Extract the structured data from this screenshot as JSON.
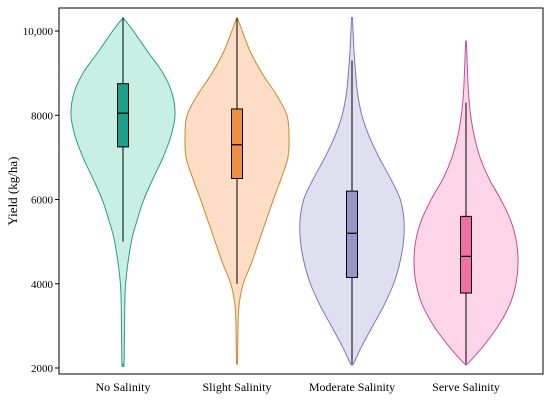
{
  "chart_data": {
    "type": "violin",
    "ylabel": "Yield (kg/ha)",
    "ylim": [
      2000,
      10500
    ],
    "yticks": [
      2000,
      4000,
      6000,
      8000,
      10000
    ],
    "ytick_labels": [
      "2000",
      "4000",
      "6000",
      "8000",
      "10,000"
    ],
    "grid": false,
    "categories": [
      "No Salinity",
      "Slight Salinity",
      "Moderate Salinity",
      "Serve Salinity"
    ],
    "series": [
      {
        "category": "No Salinity",
        "fill": "#c2ede0",
        "stroke": "#2a9d80",
        "box_color": "#1f9e89",
        "range": [
          2100,
          10300
        ],
        "box": {
          "whisker_low": 5000,
          "q1": 7250,
          "median": 8050,
          "q3": 8750,
          "whisker_high": 10300
        },
        "density": [
          [
            2100,
            0.02
          ],
          [
            3000,
            0.03
          ],
          [
            4000,
            0.05
          ],
          [
            5000,
            0.16
          ],
          [
            5500,
            0.27
          ],
          [
            6000,
            0.4
          ],
          [
            6500,
            0.58
          ],
          [
            7000,
            0.77
          ],
          [
            7500,
            0.92
          ],
          [
            8000,
            1.0
          ],
          [
            8500,
            0.95
          ],
          [
            9000,
            0.77
          ],
          [
            9500,
            0.48
          ],
          [
            10000,
            0.2
          ],
          [
            10300,
            0.01
          ]
        ]
      },
      {
        "category": "Slight Salinity",
        "fill": "#fdd9bf",
        "stroke": "#c88a2c",
        "box_color": "#ee8f43",
        "range": [
          2150,
          10300
        ],
        "box": {
          "whisker_low": 4000,
          "q1": 6500,
          "median": 7300,
          "q3": 8150,
          "whisker_high": 10300
        },
        "density": [
          [
            2150,
            0.01
          ],
          [
            3000,
            0.02
          ],
          [
            3500,
            0.04
          ],
          [
            4000,
            0.12
          ],
          [
            4500,
            0.28
          ],
          [
            5000,
            0.42
          ],
          [
            5500,
            0.56
          ],
          [
            6000,
            0.7
          ],
          [
            6500,
            0.85
          ],
          [
            7000,
            0.98
          ],
          [
            7500,
            1.0
          ],
          [
            8000,
            0.96
          ],
          [
            8500,
            0.75
          ],
          [
            9000,
            0.48
          ],
          [
            9500,
            0.26
          ],
          [
            10000,
            0.1
          ],
          [
            10300,
            0.01
          ]
        ]
      },
      {
        "category": "Moderate Salinity",
        "fill": "#dcdcee",
        "stroke": "#7c76b6",
        "box_color": "#9a96cc",
        "range": [
          2100,
          10300
        ],
        "box": {
          "whisker_low": 2100,
          "q1": 4150,
          "median": 5200,
          "q3": 6200,
          "whisker_high": 9300
        },
        "density": [
          [
            2100,
            0.03
          ],
          [
            2500,
            0.18
          ],
          [
            3000,
            0.4
          ],
          [
            3500,
            0.62
          ],
          [
            4000,
            0.8
          ],
          [
            4500,
            0.92
          ],
          [
            5000,
            0.99
          ],
          [
            5500,
            1.0
          ],
          [
            6000,
            0.93
          ],
          [
            6500,
            0.74
          ],
          [
            7000,
            0.52
          ],
          [
            7500,
            0.33
          ],
          [
            8000,
            0.19
          ],
          [
            8500,
            0.11
          ],
          [
            9000,
            0.07
          ],
          [
            9500,
            0.04
          ],
          [
            10000,
            0.02
          ],
          [
            10300,
            0.01
          ]
        ]
      },
      {
        "category": "Serve Salinity",
        "fill": "#fcd2e6",
        "stroke": "#c24c9b",
        "box_color": "#ef6fa6",
        "range": [
          2100,
          9750
        ],
        "box": {
          "whisker_low": 2100,
          "q1": 3780,
          "median": 4650,
          "q3": 5600,
          "whisker_high": 8300
        },
        "density": [
          [
            2100,
            0.03
          ],
          [
            2500,
            0.32
          ],
          [
            3000,
            0.62
          ],
          [
            3500,
            0.84
          ],
          [
            4000,
            0.96
          ],
          [
            4500,
            1.0
          ],
          [
            5000,
            0.97
          ],
          [
            5500,
            0.86
          ],
          [
            6000,
            0.67
          ],
          [
            6500,
            0.44
          ],
          [
            7000,
            0.27
          ],
          [
            7500,
            0.16
          ],
          [
            8000,
            0.09
          ],
          [
            8500,
            0.05
          ],
          [
            9000,
            0.03
          ],
          [
            9500,
            0.015
          ],
          [
            9750,
            0.005
          ]
        ]
      }
    ]
  }
}
